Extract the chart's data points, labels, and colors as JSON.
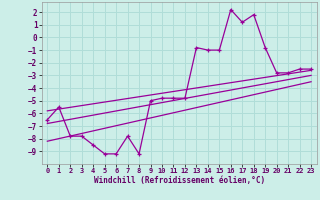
{
  "xlabel": "Windchill (Refroidissement éolien,°C)",
  "bg_color": "#cceee8",
  "grid_color": "#b0ddd8",
  "line_color": "#990099",
  "hours": [
    0,
    1,
    2,
    3,
    4,
    5,
    6,
    7,
    8,
    9,
    10,
    11,
    12,
    13,
    14,
    15,
    16,
    17,
    18,
    19,
    20,
    21,
    22,
    23
  ],
  "temp": [
    -6.5,
    -5.5,
    -7.8,
    -7.8,
    -8.5,
    -9.2,
    -9.2,
    -7.8,
    -9.2,
    -5.0,
    -4.8,
    -4.8,
    -4.8,
    -0.8,
    -1.0,
    -1.0,
    2.2,
    1.2,
    1.8,
    -0.8,
    -2.8,
    -2.8,
    -2.5,
    -2.5
  ],
  "ylim": [
    -10,
    2.8
  ],
  "yticks": [
    2,
    1,
    0,
    -1,
    -2,
    -3,
    -4,
    -5,
    -6,
    -7,
    -8,
    -9
  ],
  "xlim": [
    -0.5,
    23.5
  ],
  "xticks": [
    0,
    1,
    2,
    3,
    4,
    5,
    6,
    7,
    8,
    9,
    10,
    11,
    12,
    13,
    14,
    15,
    16,
    17,
    18,
    19,
    20,
    21,
    22,
    23
  ],
  "reg1_y0": -5.8,
  "reg1_y1": -2.6,
  "reg2_y0": -6.8,
  "reg2_y1": -3.0,
  "reg3_y0": -8.2,
  "reg3_y1": -3.5,
  "tick_fontsize": 5.5,
  "xlabel_fontsize": 5.5
}
